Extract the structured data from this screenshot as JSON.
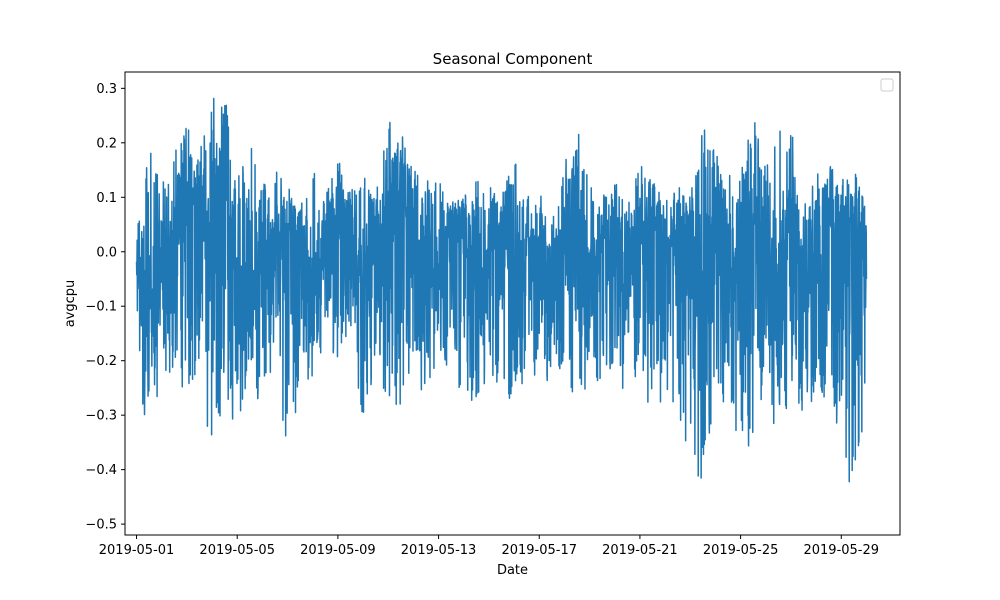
{
  "chart_data": {
    "type": "line",
    "title": "Seasonal Component",
    "xlabel": "Date",
    "ylabel": "avgcpu",
    "x_range": [
      "2019-05-01",
      "2019-05-30"
    ],
    "xlim": [
      "2019-04-30T13:00",
      "2019-05-31T08:00"
    ],
    "ylim": [
      -0.52,
      0.33
    ],
    "x_ticks": [
      "2019-05-01",
      "2019-05-05",
      "2019-05-09",
      "2019-05-13",
      "2019-05-17",
      "2019-05-21",
      "2019-05-25",
      "2019-05-29"
    ],
    "y_ticks": [
      -0.5,
      -0.4,
      -0.3,
      -0.2,
      -0.1,
      0.0,
      0.1,
      0.2,
      0.3
    ],
    "y_tick_labels": [
      "−0.5",
      "−0.4",
      "−0.3",
      "−0.2",
      "−0.1",
      "0.0",
      "0.1",
      "0.2",
      "0.3"
    ],
    "grid": false,
    "legend": {
      "placement": "upper-right",
      "entries": []
    },
    "series": [
      {
        "color": "#1f77b4",
        "x": [
          "2019-05-01T00:00",
          "2019-05-01T12:00",
          "2019-05-02T00:00",
          "2019-05-02T12:00",
          "2019-05-03T00:00",
          "2019-05-03T12:00",
          "2019-05-04T00:00",
          "2019-05-04T12:00",
          "2019-05-05T00:00",
          "2019-05-05T12:00",
          "2019-05-06T00:00",
          "2019-05-06T12:00",
          "2019-05-07T00:00",
          "2019-05-07T12:00",
          "2019-05-08T00:00",
          "2019-05-08T12:00",
          "2019-05-09T00:00",
          "2019-05-09T12:00",
          "2019-05-10T00:00",
          "2019-05-10T12:00",
          "2019-05-11T00:00",
          "2019-05-11T12:00",
          "2019-05-12T00:00",
          "2019-05-12T12:00",
          "2019-05-13T00:00",
          "2019-05-13T12:00",
          "2019-05-14T00:00",
          "2019-05-14T12:00",
          "2019-05-15T00:00",
          "2019-05-15T12:00",
          "2019-05-16T00:00",
          "2019-05-16T12:00",
          "2019-05-17T00:00",
          "2019-05-17T12:00",
          "2019-05-18T00:00",
          "2019-05-18T12:00",
          "2019-05-19T00:00",
          "2019-05-19T12:00",
          "2019-05-20T00:00",
          "2019-05-20T12:00",
          "2019-05-21T00:00",
          "2019-05-21T12:00",
          "2019-05-22T00:00",
          "2019-05-22T12:00",
          "2019-05-23T00:00",
          "2019-05-23T12:00",
          "2019-05-24T00:00",
          "2019-05-24T12:00",
          "2019-05-25T00:00",
          "2019-05-25T12:00",
          "2019-05-26T00:00",
          "2019-05-26T12:00",
          "2019-05-27T00:00",
          "2019-05-27T12:00",
          "2019-05-28T00:00",
          "2019-05-28T12:00",
          "2019-05-29T00:00",
          "2019-05-29T12:00",
          "2019-05-30T00:00"
        ],
        "y": [
          -0.05,
          -0.1,
          -0.05,
          0.02,
          0.06,
          0.1,
          0.06,
          0.12,
          -0.05,
          -0.08,
          -0.02,
          0.02,
          0.05,
          0.01,
          -0.1,
          0.02,
          0.05,
          0.03,
          -0.05,
          0.02,
          0.08,
          0.1,
          0.05,
          -0.02,
          -0.05,
          0.05,
          0.02,
          -0.08,
          0.0,
          0.05,
          -0.03,
          0.03,
          0.0,
          -0.05,
          0.02,
          0.05,
          -0.05,
          0.03,
          0.0,
          -0.05,
          0.02,
          0.06,
          0.0,
          0.03,
          0.05,
          -0.08,
          0.0,
          0.02,
          -0.05,
          0.05,
          0.0,
          -0.05,
          0.1,
          -0.03,
          -0.05,
          0.05,
          0.03,
          0.06,
          -0.05
        ],
        "upper": [
          0.03,
          0.19,
          0.12,
          0.18,
          0.23,
          0.18,
          0.28,
          0.29,
          0.13,
          0.2,
          0.12,
          0.15,
          0.12,
          0.08,
          0.15,
          0.1,
          0.17,
          0.11,
          0.14,
          0.1,
          0.24,
          0.22,
          0.15,
          0.13,
          0.13,
          0.09,
          0.1,
          0.13,
          0.12,
          0.1,
          0.17,
          0.1,
          0.11,
          0.05,
          0.16,
          0.23,
          0.12,
          0.1,
          0.13,
          0.08,
          0.16,
          0.13,
          0.09,
          0.12,
          0.1,
          0.23,
          0.18,
          0.14,
          0.14,
          0.25,
          0.15,
          0.22,
          0.23,
          0.08,
          0.14,
          0.16,
          0.13,
          0.15,
          0.09
        ],
        "lower": [
          -0.28,
          -0.31,
          -0.24,
          -0.21,
          -0.27,
          -0.2,
          -0.39,
          -0.25,
          -0.34,
          -0.2,
          -0.31,
          -0.17,
          -0.39,
          -0.24,
          -0.23,
          -0.16,
          -0.2,
          -0.13,
          -0.32,
          -0.2,
          -0.28,
          -0.28,
          -0.19,
          -0.29,
          -0.17,
          -0.23,
          -0.26,
          -0.28,
          -0.22,
          -0.25,
          -0.28,
          -0.22,
          -0.23,
          -0.24,
          -0.2,
          -0.29,
          -0.23,
          -0.24,
          -0.2,
          -0.28,
          -0.2,
          -0.32,
          -0.25,
          -0.29,
          -0.38,
          -0.43,
          -0.25,
          -0.29,
          -0.35,
          -0.36,
          -0.22,
          -0.37,
          -0.24,
          -0.3,
          -0.26,
          -0.27,
          -0.34,
          -0.47,
          -0.25
        ]
      }
    ]
  }
}
